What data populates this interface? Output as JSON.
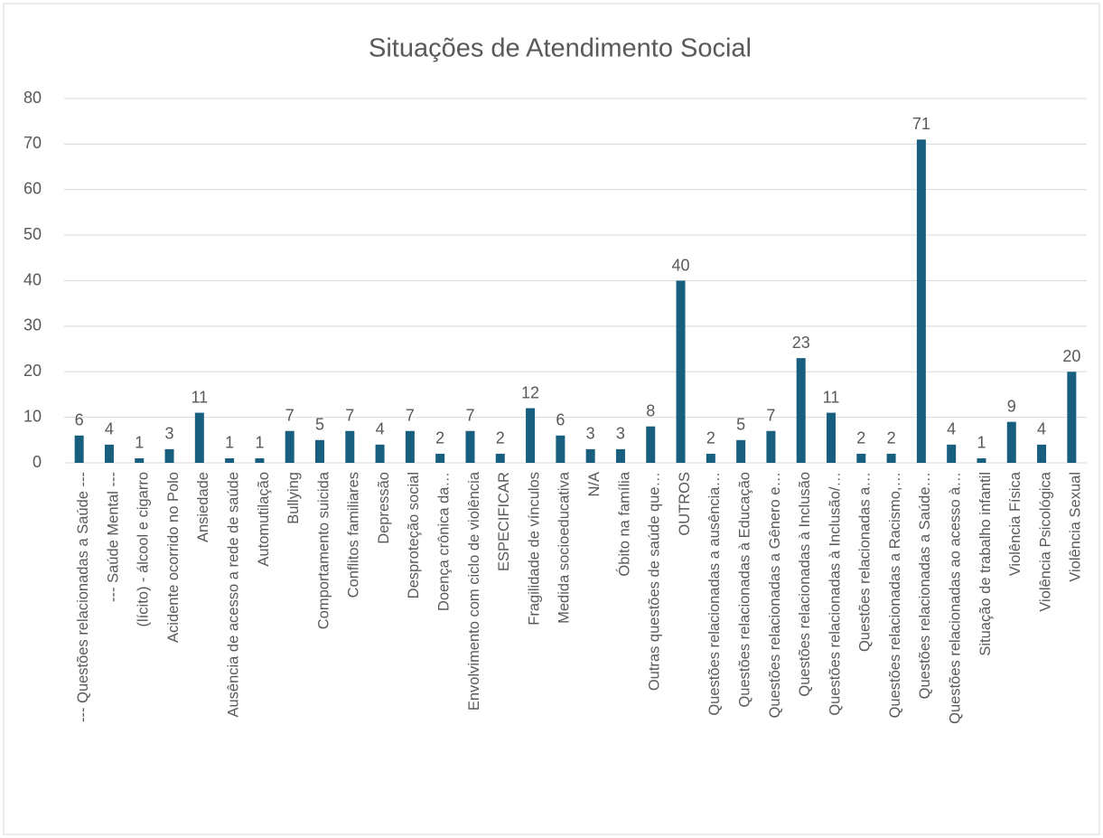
{
  "chart_data": {
    "type": "bar",
    "title": "Situações de Atendimento Social",
    "categories": [
      "--- Questões relacionadas a Saúde ---",
      "--- Saúde Mental ---",
      "(lícito) - álcool e cigarro",
      "Acidente ocorrido no Polo",
      "Ansiedade",
      "Ausência de acesso a rede de saúde",
      "Automutilação",
      "Bullying",
      "Comportamento suicida",
      "Conflitos familiares",
      "Depressão",
      "Desproteção social",
      "Doença crônica da…",
      "Envolvimento com ciclo de violência",
      "ESPECIFICAR",
      "Fragilidade de vínculos",
      "Medida socioeducativa",
      "N/A",
      "Óbito na família",
      "Outras questões de saúde que…",
      "OUTROS",
      "Questões relacionadas a ausência…",
      "Questões relacionadas à Educação",
      "Questões relacionadas a Gênero e…",
      "Questões relacionadas à Inclusão",
      "Questões relacionadas à Inclusão/…",
      "Questões relacionadas a…",
      "Questões relacionadas a Racismo,…",
      "Questões relacionadas a Saúde…",
      "Questões relacionadas ao acesso à…",
      "Situação de trabalho infantil",
      "Violência Física",
      "Violência Psicológica",
      "Violência Sexual"
    ],
    "values": [
      6,
      4,
      1,
      3,
      11,
      1,
      1,
      7,
      5,
      7,
      4,
      7,
      2,
      7,
      2,
      12,
      6,
      3,
      3,
      8,
      40,
      2,
      5,
      7,
      23,
      11,
      2,
      2,
      71,
      4,
      1,
      9,
      4,
      20
    ],
    "color": "#185f7f",
    "ylim": [
      0,
      80
    ],
    "yticks": [
      0,
      10,
      20,
      30,
      40,
      50,
      60,
      70,
      80
    ],
    "grid": true,
    "data_labels": true
  }
}
